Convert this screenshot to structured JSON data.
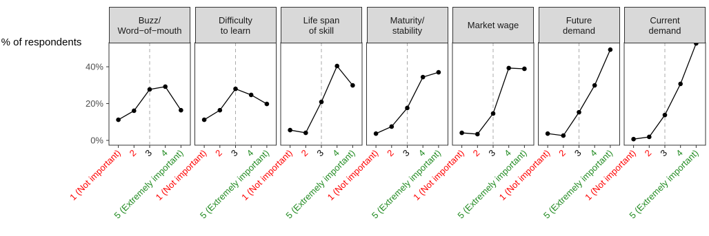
{
  "chart_data": {
    "type": "line",
    "y_label": "% of respondents",
    "categories": [
      "1 (Not important)",
      "2",
      "3",
      "4",
      "5 (Extremely important)"
    ],
    "category_colors": [
      "#ff0000",
      "#ff0000",
      "#000000",
      "#228b22",
      "#228b22"
    ],
    "ylim": [
      -2.6,
      53.1
    ],
    "yticks": [
      {
        "value": 0,
        "label": "0%"
      },
      {
        "value": 20,
        "label": "20%"
      },
      {
        "value": 40,
        "label": "40%"
      }
    ],
    "color": "#000000",
    "facets": [
      {
        "title": "Buzz/\nWord−of−mouth",
        "values": [
          11.2,
          16.1,
          27.7,
          29.2,
          16.4
        ]
      },
      {
        "title": "Difficulty\nto learn",
        "values": [
          11.2,
          16.4,
          28.0,
          24.7,
          19.8
        ]
      },
      {
        "title": "Life span\nof skill",
        "values": [
          5.6,
          4.1,
          20.9,
          40.4,
          29.9
        ]
      },
      {
        "title": "Maturity/\nstability",
        "values": [
          3.7,
          7.5,
          17.6,
          34.4,
          37.0
        ]
      },
      {
        "title": "Market wage",
        "values": [
          4.1,
          3.4,
          14.6,
          39.3,
          38.9
        ]
      },
      {
        "title": "Future\ndemand",
        "values": [
          3.7,
          2.6,
          15.3,
          29.9,
          49.3
        ]
      },
      {
        "title": "Current\ndemand",
        "values": [
          0.7,
          1.9,
          13.8,
          30.7,
          52.7
        ]
      }
    ]
  }
}
